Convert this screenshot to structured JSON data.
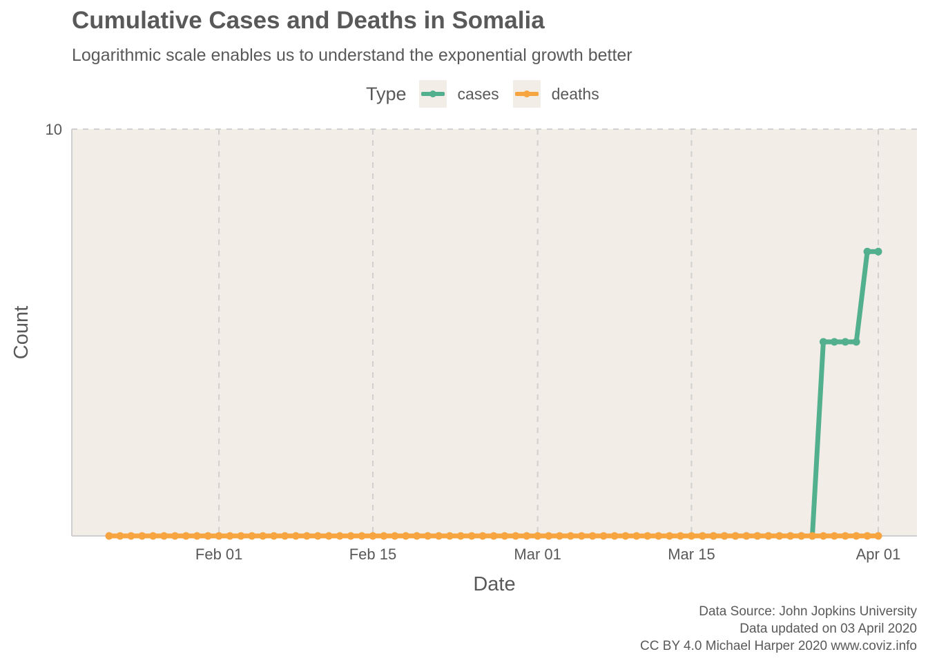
{
  "title": "Cumulative Cases and Deaths in Somalia",
  "subtitle": "Logarithmic scale enables us to understand the exponential growth better",
  "legend": {
    "title": "Type",
    "items": [
      {
        "label": "cases",
        "color": "#52b08f"
      },
      {
        "label": "deaths",
        "color": "#f7a540"
      }
    ]
  },
  "caption": {
    "line1": "Data Source: John Jopkins University",
    "line2": "Data updated on 03 April 2020",
    "line3": "CC BY 4.0 Michael Harper 2020 www.coviz.info"
  },
  "chart_data": {
    "type": "line",
    "xlabel": "Date",
    "ylabel": "Count",
    "y_scale": "log",
    "ylim": [
      1,
      10
    ],
    "y_ticks": [
      {
        "value": 10,
        "label": "10"
      }
    ],
    "x_start": "2020-01-22",
    "x_end": "2020-04-01",
    "x_ticks": [
      {
        "date": "2020-02-01",
        "label": "Feb 01"
      },
      {
        "date": "2020-02-15",
        "label": "Feb 15"
      },
      {
        "date": "2020-03-01",
        "label": "Mar 01"
      },
      {
        "date": "2020-03-15",
        "label": "Mar 15"
      },
      {
        "date": "2020-04-01",
        "label": "Apr 01"
      }
    ],
    "grid": true,
    "legend_position": "top",
    "background_color": "#f3ede7",
    "series": [
      {
        "name": "cases",
        "color": "#52b08f",
        "points": [
          {
            "date": "2020-03-16",
            "value": 1
          },
          {
            "date": "2020-03-17",
            "value": 1
          },
          {
            "date": "2020-03-18",
            "value": 1
          },
          {
            "date": "2020-03-19",
            "value": 1
          },
          {
            "date": "2020-03-20",
            "value": 1
          },
          {
            "date": "2020-03-21",
            "value": 1
          },
          {
            "date": "2020-03-22",
            "value": 1
          },
          {
            "date": "2020-03-23",
            "value": 1
          },
          {
            "date": "2020-03-24",
            "value": 1
          },
          {
            "date": "2020-03-25",
            "value": 1
          },
          {
            "date": "2020-03-26",
            "value": 1
          },
          {
            "date": "2020-03-27",
            "value": 3
          },
          {
            "date": "2020-03-28",
            "value": 3
          },
          {
            "date": "2020-03-29",
            "value": 3
          },
          {
            "date": "2020-03-30",
            "value": 3
          },
          {
            "date": "2020-03-31",
            "value": 5
          },
          {
            "date": "2020-04-01",
            "value": 5
          }
        ]
      },
      {
        "name": "deaths",
        "color": "#f7a540",
        "points": "zero on every day from 2020-01-22 to 2020-04-01",
        "start": "2020-01-22",
        "end": "2020-04-01",
        "constant_value": 0
      }
    ]
  }
}
